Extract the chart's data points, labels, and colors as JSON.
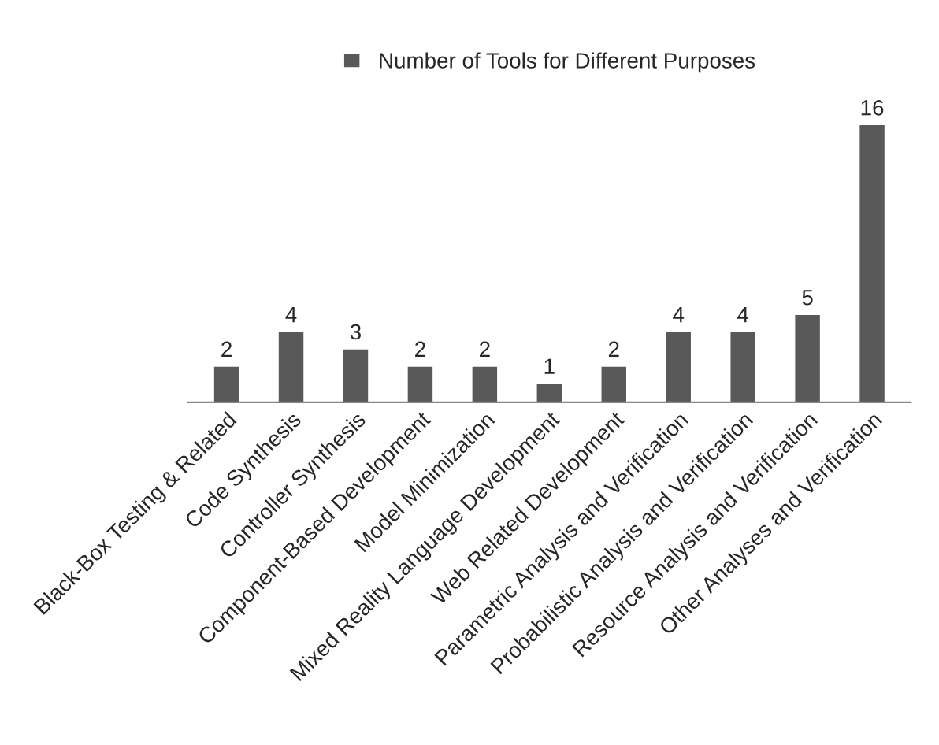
{
  "chart_data": {
    "type": "bar",
    "categories": [
      "Black-Box Testing & Related",
      "Code Synthesis",
      "Controller Synthesis",
      "Component-Based Development",
      "Model Minimization",
      "Mixed Reality Language Development",
      "Web Related Development",
      "Parametric Analysis and Verification",
      "Probabilistic Analysis and Verification",
      "Resource Analysis and Verification",
      "Other Analyses and Verification"
    ],
    "series": [
      {
        "name": "Number of Tools for Different Purposes",
        "color": "#595959",
        "values": [
          2,
          4,
          3,
          2,
          2,
          1,
          2,
          4,
          4,
          5,
          16
        ]
      }
    ],
    "data_labels": true,
    "legend": "top",
    "grid": false
  }
}
